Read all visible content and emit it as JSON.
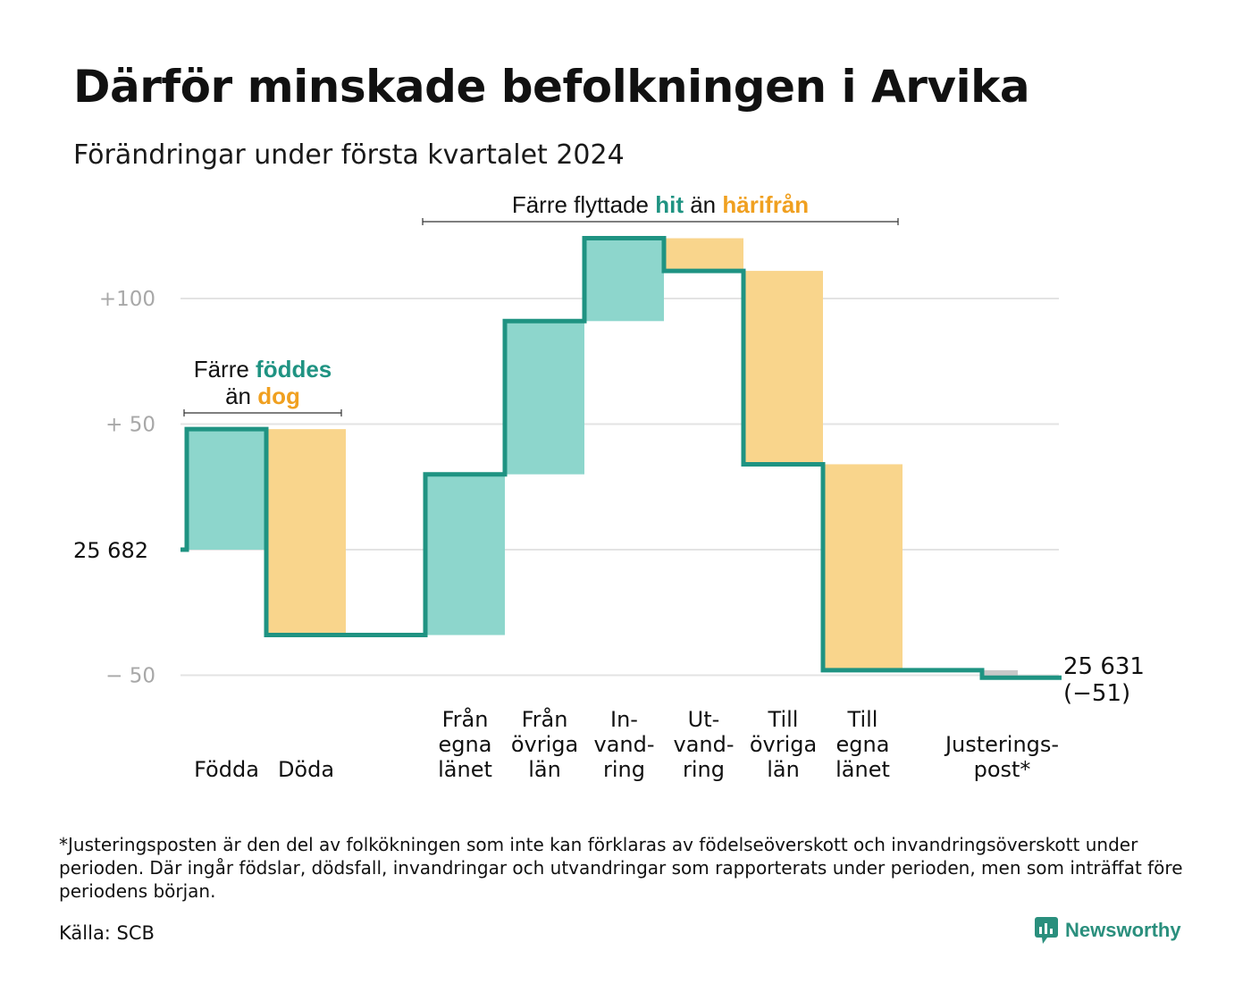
{
  "title": "Därför minskade befolkningen i Arvika",
  "subtitle": "Förändringar under första kvartalet 2024",
  "footnote": "*Justeringsposten är den del av folkökningen som inte kan förklaras av födelseöverskott och invandringsöverskott under perioden. Där ingår födslar, dödsfall, invandringar och utvandringar som rapporterats under perioden, men som inträffat före periodens början.",
  "source": "Källa: SCB",
  "brand": "Newsworthy",
  "colors": {
    "increase_fill": "#8dd6cc",
    "decrease_fill": "#f9d58c",
    "line": "#1f9382",
    "highlight_teal": "#1f9382",
    "highlight_orange": "#f0a020",
    "adjustment_fill": "#c8c8c8",
    "grid": "#e3e3e3",
    "tick": "#a8a8a8"
  },
  "chart_data": {
    "type": "waterfall",
    "start_value": 25682,
    "start_label": "25  682",
    "end_value": 25631,
    "end_label_line1": "25 631",
    "end_label_line2": "(−51)",
    "ylim": [
      -60,
      124
    ],
    "yticks": [
      {
        "value": 100,
        "label": "+100"
      },
      {
        "value": 50,
        "label": "+  50"
      },
      {
        "value": -50,
        "label": "−  50"
      }
    ],
    "steps": [
      {
        "label_lines": [
          "Födda"
        ],
        "delta": 48
      },
      {
        "label_lines": [
          "Döda"
        ],
        "delta": -82
      },
      {
        "label_lines": [],
        "delta": 0
      },
      {
        "label_lines": [
          "Från",
          "egna",
          "länet"
        ],
        "delta": 64
      },
      {
        "label_lines": [
          "Från",
          "övriga",
          "län"
        ],
        "delta": 61
      },
      {
        "label_lines": [
          "In-",
          "vand-",
          "ring"
        ],
        "delta": 33
      },
      {
        "label_lines": [
          "Ut-",
          "vand-",
          "ring"
        ],
        "delta": -13
      },
      {
        "label_lines": [
          "Till",
          "övriga",
          "län"
        ],
        "delta": -77
      },
      {
        "label_lines": [
          "Till",
          "egna",
          "länet"
        ],
        "delta": -82
      },
      {
        "label_lines": [],
        "delta": 0
      },
      {
        "label_lines": [
          "Justerings-",
          "post*"
        ],
        "delta": -3
      }
    ],
    "annotations": [
      {
        "lines": [
          [
            {
              "text": "Färre ",
              "style": "plain"
            },
            {
              "text": "föddes",
              "style": "teal"
            }
          ],
          [
            {
              "text": "än ",
              "style": "plain"
            },
            {
              "text": "dog",
              "style": "orange"
            }
          ]
        ],
        "from_step": 0,
        "to_step": 1
      },
      {
        "lines": [
          [
            {
              "text": "Färre flyttade ",
              "style": "plain"
            },
            {
              "text": "hit",
              "style": "teal"
            },
            {
              "text": " än ",
              "style": "plain"
            },
            {
              "text": "härifrån",
              "style": "orange"
            }
          ]
        ],
        "from_step": 3,
        "to_step": 8
      }
    ]
  }
}
